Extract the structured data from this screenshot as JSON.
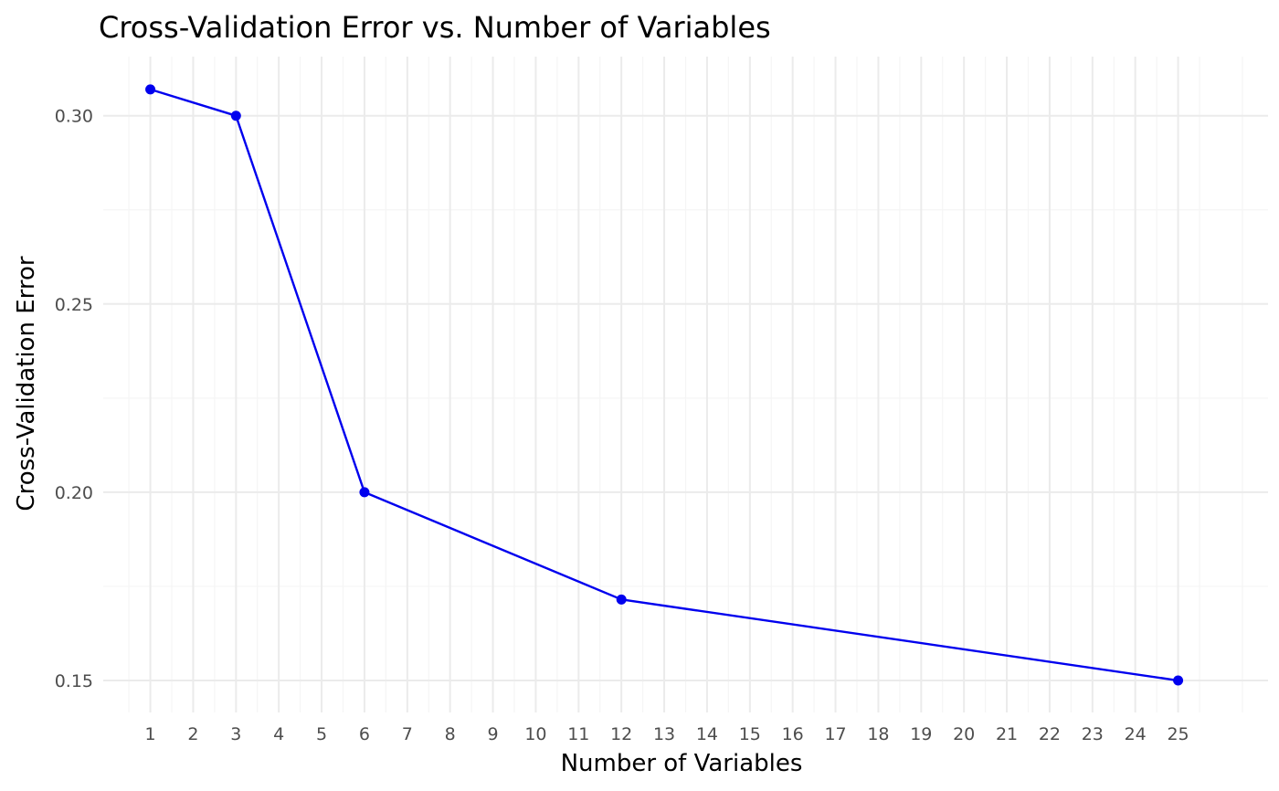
{
  "chart_data": {
    "type": "line",
    "title": "Cross-Validation Error vs. Number of Variables",
    "xlabel": "Number of Variables",
    "ylabel": "Cross-Validation Error",
    "x_ticks": [
      1,
      2,
      3,
      4,
      5,
      6,
      7,
      8,
      9,
      10,
      11,
      12,
      13,
      14,
      15,
      16,
      17,
      18,
      19,
      20,
      21,
      22,
      23,
      24,
      25
    ],
    "y_ticks": [
      "0.15",
      "0.20",
      "0.25",
      "0.30"
    ],
    "xlim": [
      -0.1,
      27.1
    ],
    "ylim": [
      0.1415,
      0.3157
    ],
    "grid": true,
    "legend": "none",
    "series": [
      {
        "color": "#0000ee",
        "x": [
          1,
          3,
          6,
          12,
          25
        ],
        "y": [
          0.307,
          0.3,
          0.2,
          0.1715,
          0.15
        ]
      }
    ]
  }
}
